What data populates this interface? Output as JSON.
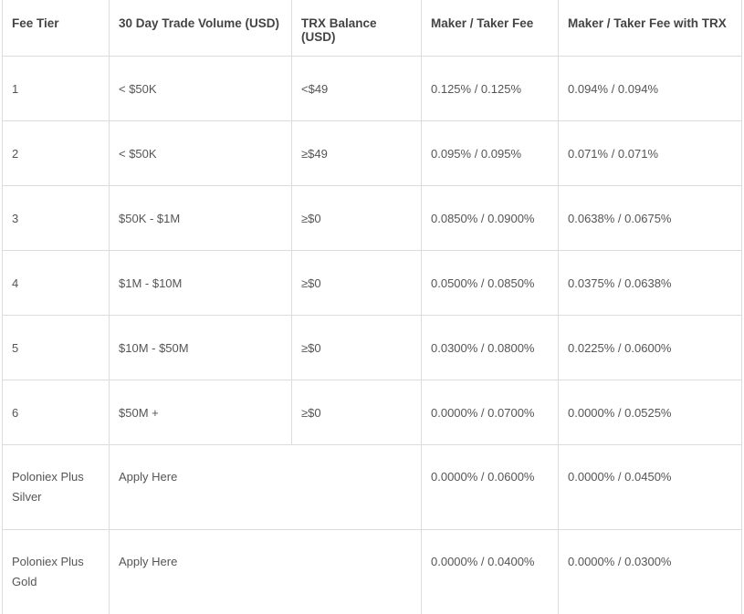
{
  "table": {
    "headers": [
      "Fee Tier",
      "30 Day Trade Volume (USD)",
      "TRX Balance (USD)",
      "Maker / Taker Fee",
      "Maker / Taker Fee with TRX"
    ],
    "rows": [
      {
        "tier": "1",
        "volume": "< $50K",
        "trx": "<$49",
        "fee": "0.125% / 0.125%",
        "fee_trx": "0.094% / 0.094%"
      },
      {
        "tier": "2",
        "volume": "< $50K",
        "trx": "≥$49",
        "fee": "0.095% / 0.095%",
        "fee_trx": "0.071% / 0.071%"
      },
      {
        "tier": "3",
        "volume": "$50K - $1M",
        "trx": "≥$0",
        "fee": "0.0850% / 0.0900%",
        "fee_trx": "0.0638% / 0.0675%"
      },
      {
        "tier": "4",
        "volume": "$1M - $10M",
        "trx": "≥$0",
        "fee": "0.0500% / 0.0850%",
        "fee_trx": "0.0375% / 0.0638%"
      },
      {
        "tier": "5",
        "volume": "$10M - $50M",
        "trx": "≥$0",
        "fee": "0.0300% / 0.0800%",
        "fee_trx": "0.0225% / 0.0600%"
      },
      {
        "tier": "6",
        "volume": "$50M +",
        "trx": "≥$0",
        "fee": "0.0000% / 0.0700%",
        "fee_trx": "0.0000% / 0.0525%"
      }
    ],
    "plus_rows": [
      {
        "tier": "Poloniex Plus Silver",
        "apply": "Apply Here",
        "fee": "0.0000% / 0.0600%",
        "fee_trx": "0.0000% / 0.0450%"
      },
      {
        "tier": "Poloniex Plus Gold",
        "apply": "Apply Here",
        "fee": "0.0000% / 0.0400%",
        "fee_trx": "0.0000% / 0.0300%"
      }
    ]
  }
}
